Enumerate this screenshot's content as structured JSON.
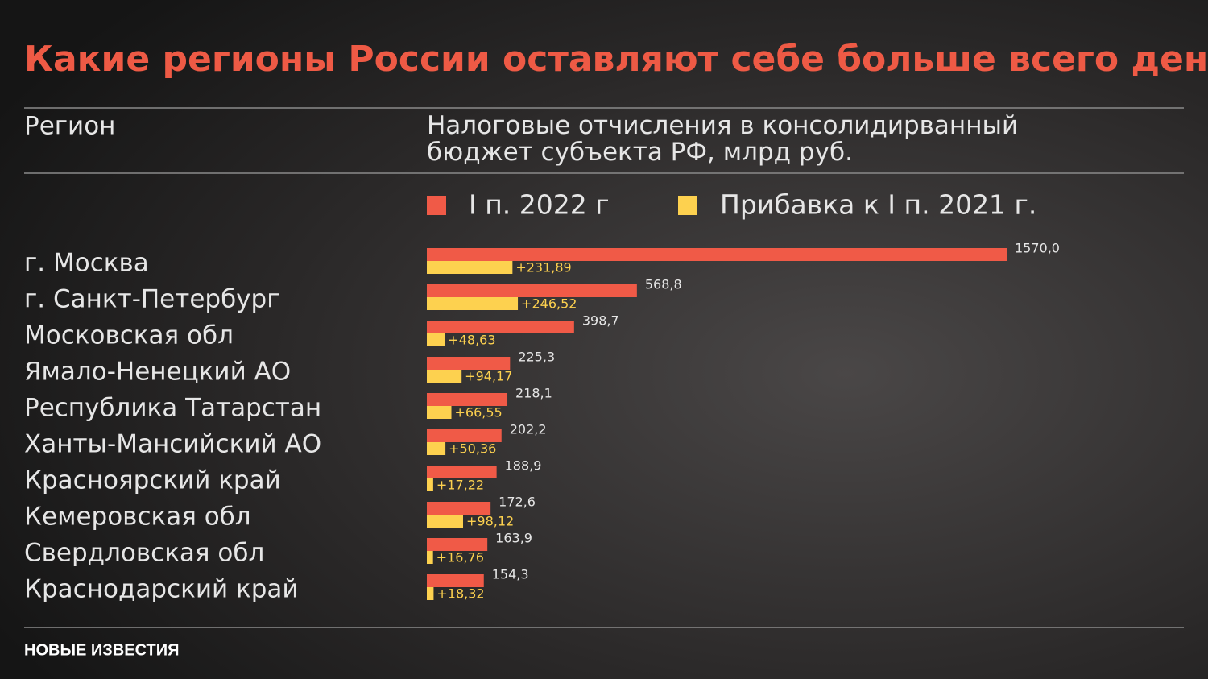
{
  "chart_data": {
    "type": "bar",
    "orientation": "horizontal",
    "title": "Какие регионы России оставляют себе больше всего денег",
    "category_header": "Регион",
    "value_header": "Налоговые отчисления в консолидирванный бюджет субъекта РФ, млрд руб.",
    "categories": [
      "г. Москва",
      "г. Санкт-Петербург",
      "Московская обл",
      "Ямало-Ненецкий АО",
      "Республика Татарстан",
      "Ханты-Мансийский АО",
      "Красноярский край",
      "Кемеровская обл",
      "Свердловская обл",
      "Краснодарский край"
    ],
    "series": [
      {
        "name": "I п. 2022 г",
        "color": "#f05a47",
        "values": [
          1570.0,
          568.8,
          398.7,
          225.3,
          218.1,
          202.2,
          188.9,
          172.6,
          163.9,
          154.3
        ],
        "value_labels": [
          "1570,0",
          "568,8",
          "398,7",
          "225,3",
          "218,1",
          "202,2",
          "188,9",
          "172,6",
          "163,9",
          "154,3"
        ]
      },
      {
        "name": "Прибавка к I п. 2021 г.",
        "color": "#fdd14f",
        "values": [
          231.89,
          246.52,
          48.63,
          94.17,
          66.55,
          50.36,
          17.22,
          98.12,
          16.76,
          18.32
        ],
        "value_labels": [
          "+231,89",
          "+246,52",
          "+48,63",
          "+94,17",
          "+66,55",
          "+50,36",
          "+17,22",
          "+98,12",
          "+16,76",
          "+18,32"
        ]
      }
    ],
    "logo": "НОВЫЕ ИЗВЕСТИЯ"
  }
}
